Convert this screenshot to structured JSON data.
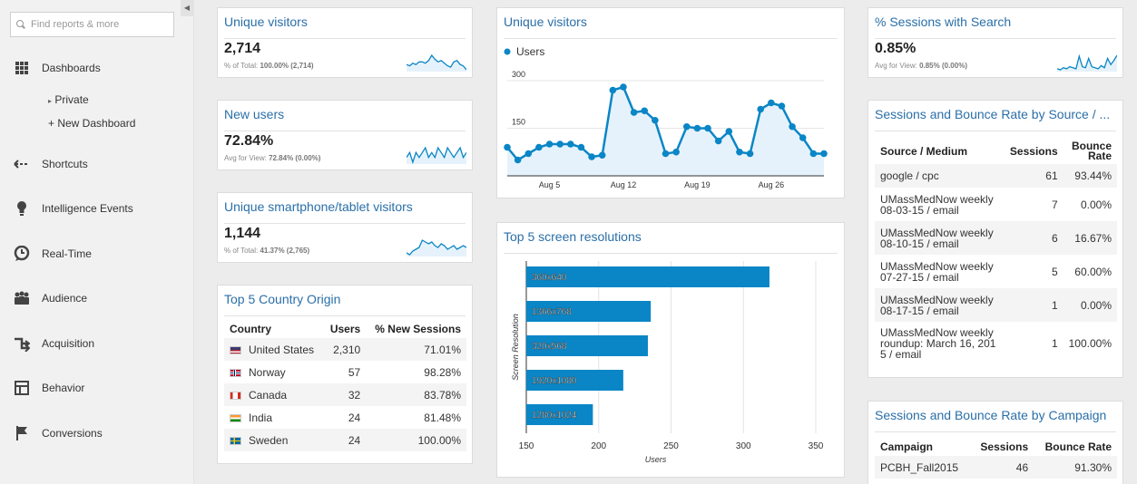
{
  "sidebar": {
    "search_placeholder": "Find reports & more",
    "items": [
      {
        "label": "Dashboards",
        "icon": "grid-icon"
      },
      {
        "label": "Shortcuts",
        "icon": "shortcut-arrow-icon"
      },
      {
        "label": "Intelligence Events",
        "icon": "lightbulb-icon"
      },
      {
        "label": "Real-Time",
        "icon": "clock-icon"
      },
      {
        "label": "Audience",
        "icon": "people-icon"
      },
      {
        "label": "Acquisition",
        "icon": "acquisition-arrows-icon"
      },
      {
        "label": "Behavior",
        "icon": "layout-icon"
      },
      {
        "label": "Conversions",
        "icon": "flag-icon"
      }
    ],
    "sub_items": [
      {
        "label": "Private"
      },
      {
        "label": "+ New Dashboard"
      }
    ]
  },
  "widgets": {
    "unique_visitors_small": {
      "title": "Unique visitors",
      "value": "2,714",
      "sub_prefix": "% of Total: ",
      "sub_bold": "100.00% (2,714)"
    },
    "new_users": {
      "title": "New users",
      "value": "72.84%",
      "sub_prefix": "Avg for View: ",
      "sub_bold": "72.84% (0.00%)"
    },
    "smartphone": {
      "title": "Unique smartphone/tablet visitors",
      "value": "1,144",
      "sub_prefix": "% of Total: ",
      "sub_bold": "41.37% (2,765)"
    },
    "sessions_search": {
      "title": "% Sessions with Search",
      "value": "0.85%",
      "sub_prefix": "Avg for View: ",
      "sub_bold": "0.85% (0.00%)"
    },
    "country": {
      "title": "Top 5 Country Origin",
      "headers": [
        "Country",
        "Users",
        "% New Sessions"
      ],
      "rows": [
        {
          "country": "United States",
          "users": "2,310",
          "pct": "71.01%",
          "flag": "us"
        },
        {
          "country": "Norway",
          "users": "57",
          "pct": "98.28%",
          "flag": "no"
        },
        {
          "country": "Canada",
          "users": "32",
          "pct": "83.78%",
          "flag": "ca"
        },
        {
          "country": "India",
          "users": "24",
          "pct": "81.48%",
          "flag": "in"
        },
        {
          "country": "Sweden",
          "users": "24",
          "pct": "100.00%",
          "flag": "se"
        }
      ]
    },
    "source": {
      "title": "Sessions and Bounce Rate by Source / ...",
      "headers": [
        "Source / Medium",
        "Sessions",
        "Bounce Rate"
      ],
      "rows": [
        {
          "source": "google / cpc",
          "sessions": "61",
          "bounce": "93.44%"
        },
        {
          "source": "UMassMedNow weekly 08-03-15 / email",
          "sessions": "7",
          "bounce": "0.00%"
        },
        {
          "source": "UMassMedNow weekly 08-10-15 / email",
          "sessions": "6",
          "bounce": "16.67%"
        },
        {
          "source": "UMassMedNow weekly 07-27-15 / email",
          "sessions": "5",
          "bounce": "60.00%"
        },
        {
          "source": "UMassMedNow weekly 08-17-15 / email",
          "sessions": "1",
          "bounce": "0.00%"
        },
        {
          "source": "UMassMedNow weekly roundup: March 16, 2015 / email",
          "sessions": "1",
          "bounce": "100.00%"
        }
      ]
    },
    "campaign": {
      "title": "Sessions and Bounce Rate by Campaign",
      "headers": [
        "Campaign",
        "Sessions",
        "Bounce Rate"
      ],
      "rows": [
        {
          "campaign": "PCBH_Fall2015",
          "sessions": "46",
          "bounce": "91.30%"
        }
      ]
    },
    "unique_visitors_chart": {
      "title": "Unique visitors"
    },
    "resolutions": {
      "title": "Top 5 screen resolutions"
    }
  },
  "chart_data": [
    {
      "type": "line",
      "legend": [
        "Users"
      ],
      "x_tick_labels": [
        "Aug 5",
        "Aug 12",
        "Aug 19",
        "Aug 26"
      ],
      "y_tick_labels": [
        "300",
        "150"
      ],
      "ylim": [
        0,
        300
      ],
      "series": [
        {
          "name": "Users",
          "values": [
            90,
            50,
            70,
            90,
            100,
            100,
            100,
            90,
            60,
            65,
            270,
            280,
            200,
            205,
            175,
            70,
            75,
            155,
            150,
            150,
            110,
            140,
            75,
            70,
            210,
            230,
            220,
            155,
            120,
            70,
            70
          ]
        }
      ],
      "colors": {
        "line": "#0a86c6",
        "fill": "#e6f2fb"
      }
    },
    {
      "type": "bar",
      "orientation": "horizontal",
      "categories": [
        "360x640",
        "1366x768",
        "320x568",
        "1920x1080",
        "1280x1024"
      ],
      "values": [
        318,
        236,
        234,
        217,
        196
      ],
      "xlim": [
        150,
        350
      ],
      "x_ticks": [
        150,
        200,
        250,
        300,
        350
      ],
      "xlabel": "Users",
      "ylabel": "Screen Resolution",
      "colors": {
        "bar": "#0a86c6"
      }
    }
  ],
  "sparklines": {
    "unique_visitors": [
      10,
      9,
      11,
      10,
      12,
      12,
      11,
      13,
      17,
      14,
      12,
      13,
      11,
      9,
      8,
      12,
      13,
      10,
      9,
      6
    ],
    "new_users": [
      10,
      11,
      9,
      11,
      10,
      11,
      12,
      10,
      11,
      10,
      12,
      11,
      10,
      12,
      11,
      10,
      11,
      12,
      10,
      11
    ],
    "smartphone": [
      5,
      4,
      6,
      7,
      8,
      12,
      11,
      10,
      11,
      9,
      8,
      10,
      9,
      7,
      8,
      9,
      7,
      8,
      9,
      8
    ],
    "sessions_search": [
      2,
      1,
      3,
      2,
      4,
      3,
      2,
      14,
      4,
      3,
      12,
      4,
      3,
      2,
      5,
      3,
      12,
      6,
      10,
      15
    ]
  }
}
